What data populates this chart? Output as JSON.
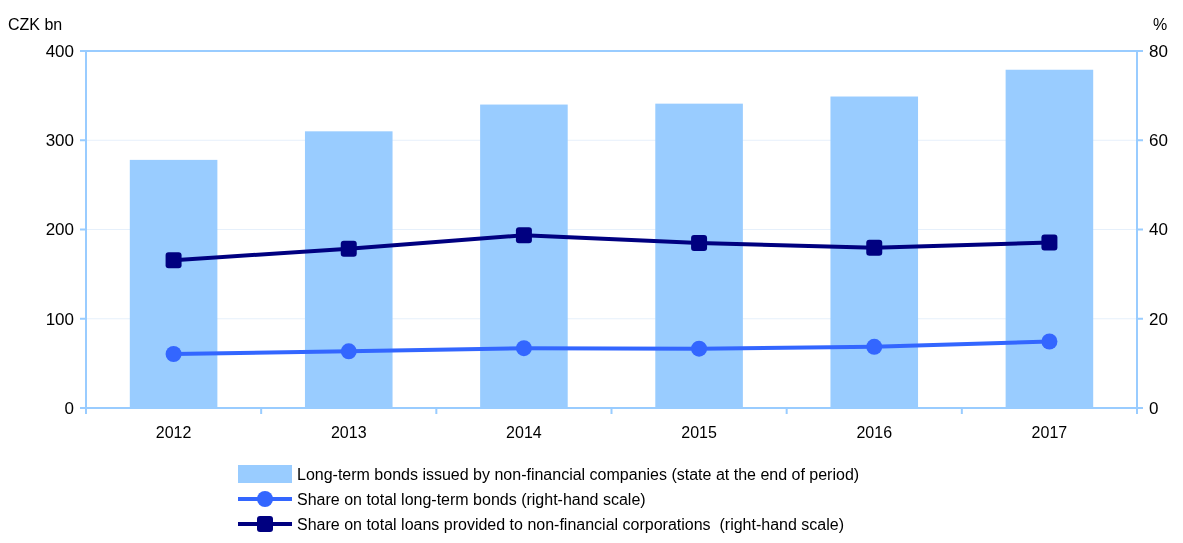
{
  "chart_data": {
    "type": "bar",
    "categories": [
      "2012",
      "2013",
      "2014",
      "2015",
      "2016",
      "2017"
    ],
    "ylabel": "CZK bn",
    "y2label": "%",
    "ylim": [
      0,
      400
    ],
    "yticks": [
      0,
      100,
      200,
      300,
      400
    ],
    "y2lim": [
      0,
      80
    ],
    "y2ticks": [
      0,
      20,
      40,
      60,
      80
    ],
    "grid": "y",
    "legend": "bottom",
    "series": [
      {
        "name": "Long-term bonds issued by non-financial companies (state at the end of period)",
        "color": "#99ccff",
        "values": [
          278,
          310,
          340,
          341,
          349,
          379
        ]
      },
      {
        "name": "Share on total long-term bonds (right-hand scale)",
        "type": "line",
        "axis": "y2",
        "marker": "circle",
        "color": "#3366ff",
        "values": [
          12.1,
          12.7,
          13.4,
          13.3,
          13.7,
          14.9
        ]
      },
      {
        "name": "Share on total loans provided to non-financial corporations  (right-hand scale)",
        "type": "line",
        "axis": "y2",
        "marker": "square",
        "color": "#000080",
        "values": [
          33.1,
          35.7,
          38.7,
          37.0,
          35.9,
          37.1
        ]
      }
    ]
  }
}
